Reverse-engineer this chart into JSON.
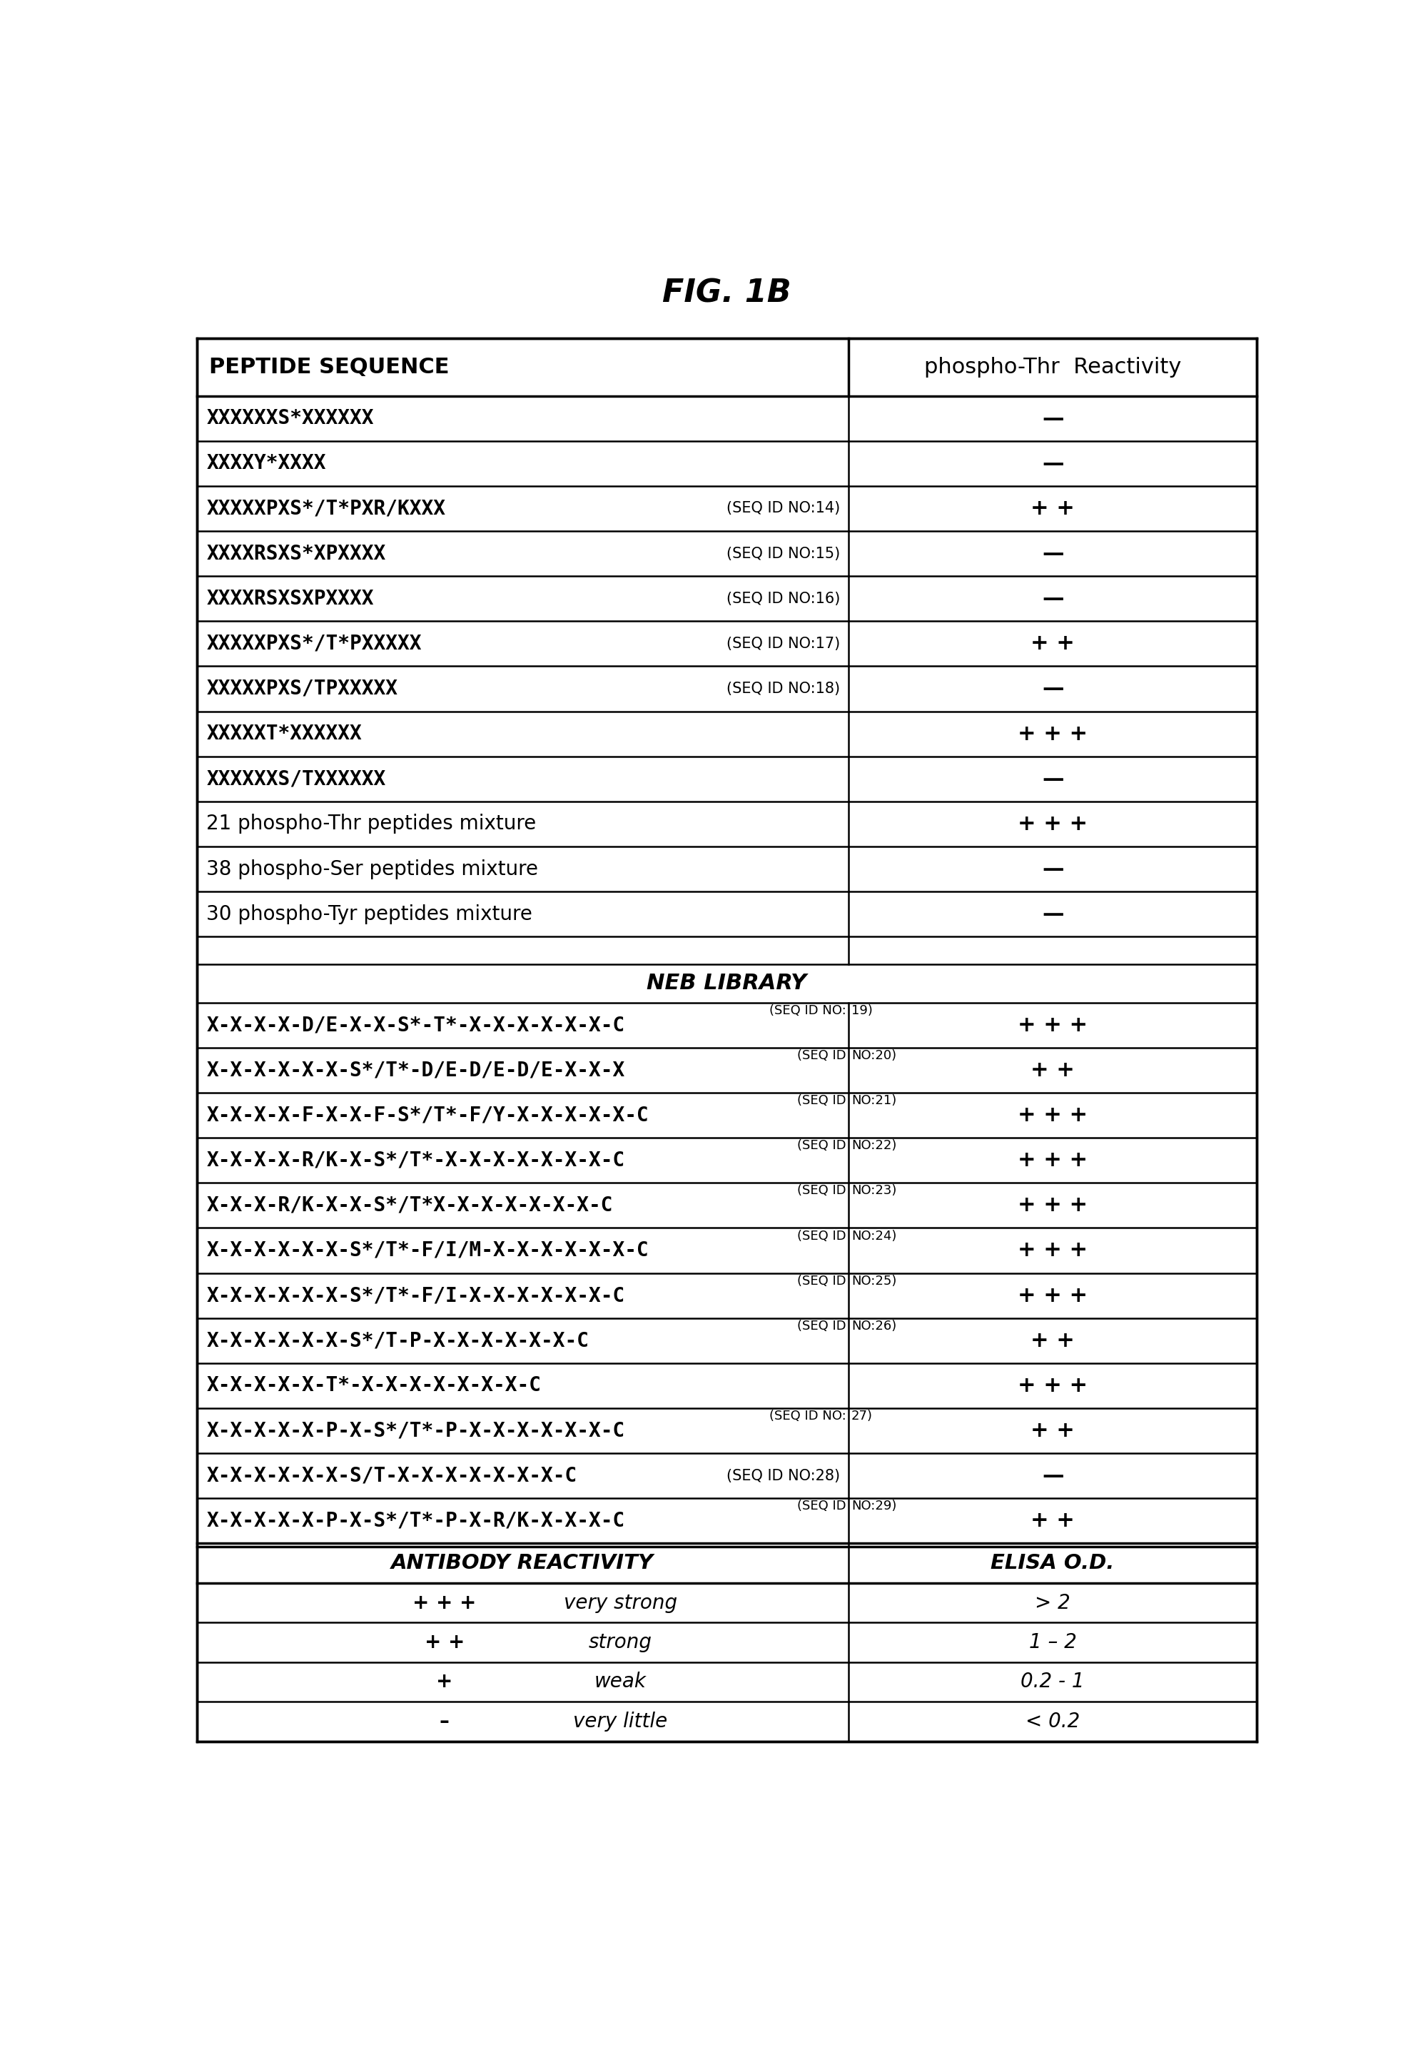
{
  "title": "FIG. 1B",
  "col1_header": "PEPTIDE SEQUENCE",
  "col2_header": "phospho-Thr  Reactivity",
  "rows": [
    {
      "seq": "XXXXXXS*XXXXXX",
      "seq_id": "",
      "seq_id2": "",
      "reactivity": "—",
      "bold_seq": true,
      "plain": false
    },
    {
      "seq": "XXXXY*XXXX",
      "seq_id": "",
      "seq_id2": "",
      "reactivity": "—",
      "bold_seq": true,
      "plain": false
    },
    {
      "seq": "XXXXXPXS*/T*PXR/KXXX",
      "seq_id": "(SEQ ID NO:14)",
      "seq_id2": "",
      "reactivity": "+ +",
      "bold_seq": true,
      "plain": false
    },
    {
      "seq": "XXXXRSXS*XPXXXX",
      "seq_id": "(SEQ ID NO:15)",
      "seq_id2": "",
      "reactivity": "—",
      "bold_seq": true,
      "plain": false
    },
    {
      "seq": "XXXXRSXSXPXXXX",
      "seq_id": "(SEQ ID NO:16)",
      "seq_id2": "",
      "reactivity": "—",
      "bold_seq": true,
      "plain": false
    },
    {
      "seq": "XXXXXPXS*/T*PXXXXX",
      "seq_id": "(SEQ ID NO:17)",
      "seq_id2": "",
      "reactivity": "+ +",
      "bold_seq": true,
      "plain": false
    },
    {
      "seq": "XXXXXPXS/TPXXXXX",
      "seq_id": "(SEQ ID NO:18)",
      "seq_id2": "",
      "reactivity": "—",
      "bold_seq": true,
      "plain": false
    },
    {
      "seq": "XXXXXT*XXXXXX",
      "seq_id": "",
      "seq_id2": "",
      "reactivity": "+ + +",
      "bold_seq": true,
      "plain": false
    },
    {
      "seq": "XXXXXXS/TXXXXXX",
      "seq_id": "",
      "seq_id2": "",
      "reactivity": "—",
      "bold_seq": true,
      "plain": false
    },
    {
      "seq": "21 phospho-Thr peptides mixture",
      "seq_id": "",
      "seq_id2": "",
      "reactivity": "+ + +",
      "bold_seq": false,
      "plain": true
    },
    {
      "seq": "38 phospho-Ser peptides mixture",
      "seq_id": "",
      "seq_id2": "",
      "reactivity": "—",
      "bold_seq": false,
      "plain": true
    },
    {
      "seq": "30 phospho-Tyr peptides mixture",
      "seq_id": "",
      "seq_id2": "",
      "reactivity": "—",
      "bold_seq": false,
      "plain": true
    },
    {
      "seq": "",
      "seq_id": "",
      "seq_id2": "",
      "reactivity": "",
      "bold_seq": false,
      "plain": false,
      "empty": true
    },
    {
      "seq": "NEB LIBRARY",
      "seq_id": "",
      "seq_id2": "",
      "reactivity": "",
      "bold_seq": false,
      "plain": false,
      "section_header": true
    },
    {
      "seq": "X-X-X-X-D/E-X-X-S*-T*-X-X-X-X-X-X-C",
      "seq_id": "(SEQ ID NO:",
      "seq_id2": "19)",
      "reactivity": "+ + +",
      "bold_seq": true,
      "plain": false,
      "sup_id": true
    },
    {
      "seq": "X-X-X-X-X-X-S*/T*-D/E-D/E-D/E-X-X-X",
      "seq_id": "(SEQ ID",
      "seq_id2": "NO:20)",
      "reactivity": "+ +",
      "bold_seq": true,
      "plain": false,
      "sup_id": true
    },
    {
      "seq": "X-X-X-X-F-X-X-F-S*/T*-F/Y-X-X-X-X-X-C",
      "seq_id": "(SEQ ID",
      "seq_id2": "NO:21)",
      "reactivity": "+ + +",
      "bold_seq": true,
      "plain": false,
      "sup_id": true
    },
    {
      "seq": "X-X-X-X-R/K-X-S*/T*-X-X-X-X-X-X-X-C",
      "seq_id": "(SEQ ID",
      "seq_id2": "NO:22)",
      "reactivity": "+ + +",
      "bold_seq": true,
      "plain": false,
      "sup_id": true
    },
    {
      "seq": "X-X-X-R/K-X-X-S*/T*X-X-X-X-X-X-X-C",
      "seq_id": "(SEQ ID",
      "seq_id2": "NO:23)",
      "reactivity": "+ + +",
      "bold_seq": true,
      "plain": false,
      "sup_id": true
    },
    {
      "seq": "X-X-X-X-X-X-S*/T*-F/I/M-X-X-X-X-X-X-C",
      "seq_id": "(SEQ ID",
      "seq_id2": "NO:24)",
      "reactivity": "+ + +",
      "bold_seq": true,
      "plain": false,
      "sup_id": true
    },
    {
      "seq": "X-X-X-X-X-X-S*/T*-F/I-X-X-X-X-X-X-C",
      "seq_id": "(SEQ ID",
      "seq_id2": "NO:25)",
      "reactivity": "+ + +",
      "bold_seq": true,
      "plain": false,
      "sup_id": true
    },
    {
      "seq": "X-X-X-X-X-X-S*/T-P-X-X-X-X-X-X-C",
      "seq_id": "(SEQ ID",
      "seq_id2": "NO:26)",
      "reactivity": "+ +",
      "bold_seq": true,
      "plain": false,
      "sup_id": true
    },
    {
      "seq": "X-X-X-X-X-T*-X-X-X-X-X-X-X-C",
      "seq_id": "",
      "seq_id2": "",
      "reactivity": "+ + +",
      "bold_seq": true,
      "plain": false
    },
    {
      "seq": "X-X-X-X-X-P-X-S*/T*-P-X-X-X-X-X-X-C",
      "seq_id": "(SEQ ID NO:",
      "seq_id2": "27)",
      "reactivity": "+ +",
      "bold_seq": true,
      "plain": false,
      "sup_id": true
    },
    {
      "seq": "X-X-X-X-X-X-S/T-X-X-X-X-X-X-X-C",
      "seq_id": "(SEQ ID NO:",
      "seq_id2": "28)",
      "reactivity": "—",
      "bold_seq": true,
      "plain": false,
      "sup_id": false
    },
    {
      "seq": "X-X-X-X-X-P-X-S*/T*-P-X-R/K-X-X-X-C",
      "seq_id": "(SEQ ID",
      "seq_id2": "NO:29)",
      "reactivity": "+ +",
      "bold_seq": true,
      "plain": false,
      "sup_id": true
    }
  ],
  "legend_rows": [
    {
      "symbol": "+ + +",
      "label": "very strong",
      "elisa": "> 2"
    },
    {
      "symbol": "+ +",
      "label": "strong",
      "elisa": "1 – 2"
    },
    {
      "symbol": "+",
      "label": "weak",
      "elisa": "0.2 - 1"
    },
    {
      "symbol": "–",
      "label": "very little",
      "elisa": "< 0.2"
    }
  ],
  "legend_col1_header": "ANTIBODY REACTIVITY",
  "legend_col2_header": "ELISA O.D.",
  "background": "#ffffff",
  "text_color": "#000000"
}
